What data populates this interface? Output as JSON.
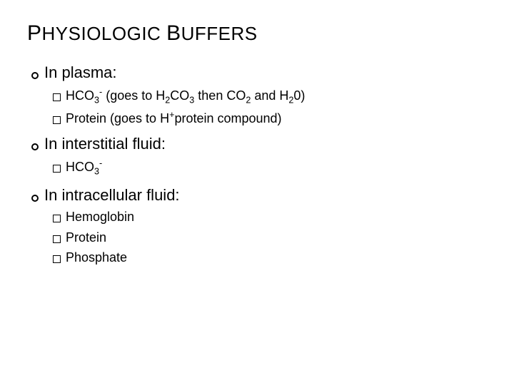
{
  "title_parts": [
    "P",
    "HYSIOLOGIC ",
    "B",
    "UFFERS"
  ],
  "sections": [
    {
      "heading": "In plasma:",
      "items": [
        {
          "html": "HCO<sub>3</sub><sup>-</sup> (goes to H<sub>2</sub>CO<sub>3</sub> then CO<sub>2</sub> and H<sub>2</sub>0)"
        },
        {
          "html": "Protein (goes to H<sup>+</sup>protein compound)"
        }
      ]
    },
    {
      "heading": "In interstitial fluid:",
      "items": [
        {
          "html": "HCO<sub>3</sub><sup>-</sup>"
        }
      ]
    },
    {
      "heading": "In intracellular fluid:",
      "items": [
        {
          "html": "Hemoglobin"
        },
        {
          "html": "Protein"
        },
        {
          "html": "Phosphate"
        }
      ]
    }
  ],
  "colors": {
    "background": "#ffffff",
    "text": "#000000"
  }
}
